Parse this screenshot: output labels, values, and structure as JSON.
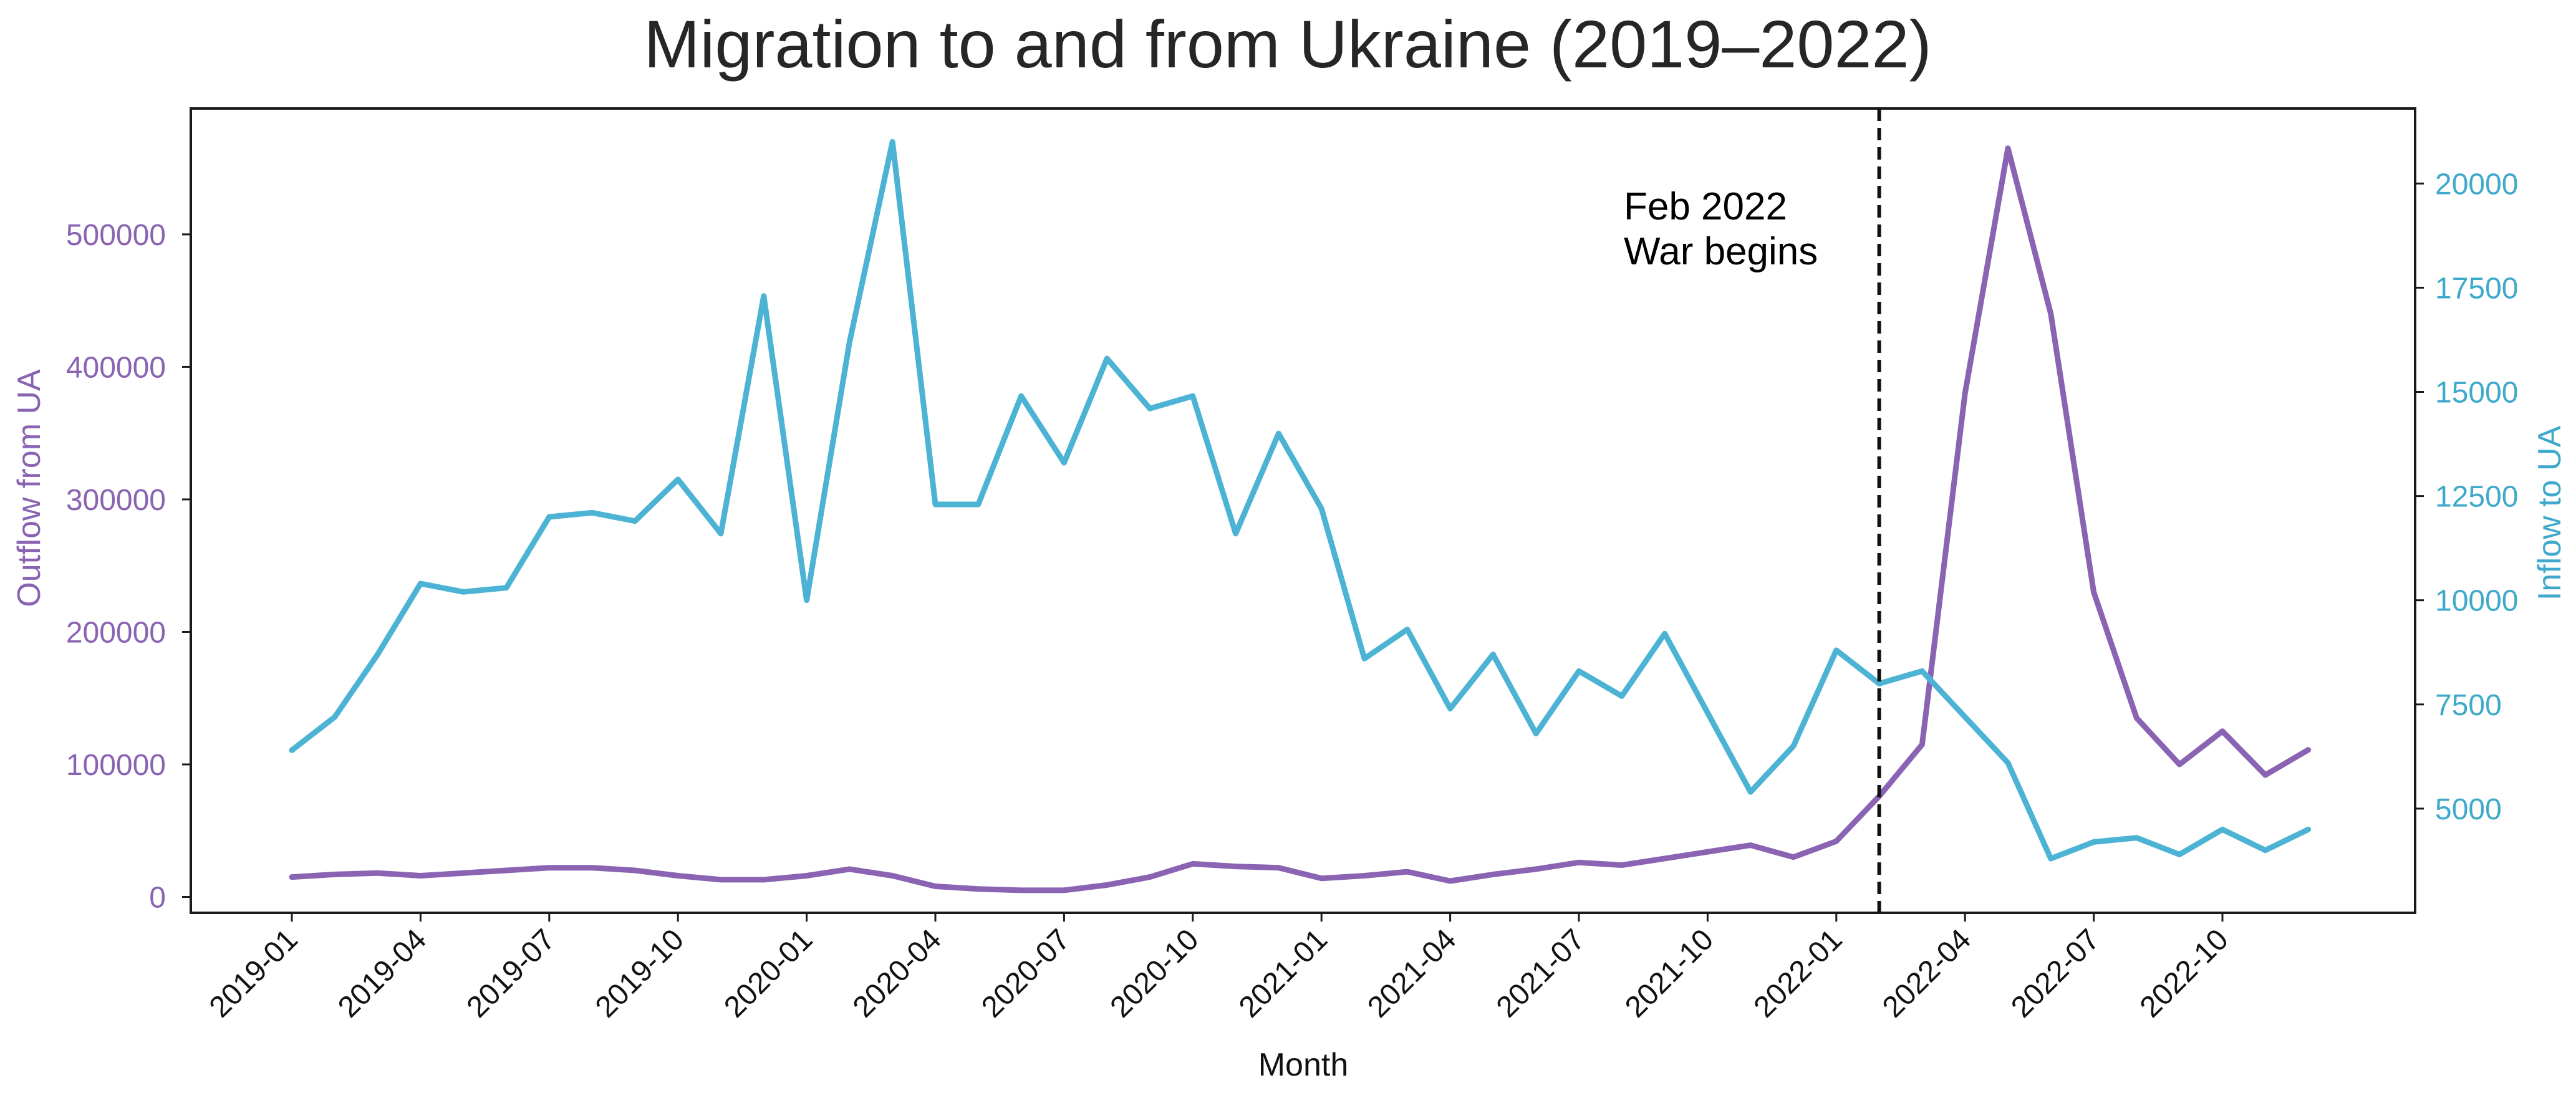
{
  "chart_data": {
    "type": "line",
    "title": "Migration to and from Ukraine (2019–2022)",
    "xlabel": "Month",
    "ylabel_left": "Outflow from UA",
    "ylabel_right": "Inflow to UA",
    "x": [
      "2019-01",
      "2019-02",
      "2019-03",
      "2019-04",
      "2019-05",
      "2019-06",
      "2019-07",
      "2019-08",
      "2019-09",
      "2019-10",
      "2019-11",
      "2019-12",
      "2020-01",
      "2020-02",
      "2020-03",
      "2020-04",
      "2020-05",
      "2020-06",
      "2020-07",
      "2020-08",
      "2020-09",
      "2020-10",
      "2020-11",
      "2020-12",
      "2021-01",
      "2021-02",
      "2021-03",
      "2021-04",
      "2021-05",
      "2021-06",
      "2021-07",
      "2021-08",
      "2021-09",
      "2021-10",
      "2021-11",
      "2021-12",
      "2022-01",
      "2022-02",
      "2022-03",
      "2022-04",
      "2022-05",
      "2022-06",
      "2022-07",
      "2022-08",
      "2022-09",
      "2022-10",
      "2022-11",
      "2022-12"
    ],
    "x_tick_labels": [
      "2019-01",
      "2019-04",
      "2019-07",
      "2019-10",
      "2020-01",
      "2020-04",
      "2020-07",
      "2020-10",
      "2021-01",
      "2021-04",
      "2021-07",
      "2021-10",
      "2022-01",
      "2022-04",
      "2022-07",
      "2022-10"
    ],
    "ylim_left": [
      -12000,
      595000
    ],
    "yticks_left": [
      0,
      100000,
      200000,
      300000,
      400000,
      500000
    ],
    "ylim_right": [
      2500,
      21800
    ],
    "yticks_right": [
      5000,
      7500,
      10000,
      12500,
      15000,
      17500,
      20000
    ],
    "series": [
      {
        "name": "Outflow from UA",
        "axis": "left",
        "color": "#8a63b3",
        "values": [
          15000,
          17000,
          18000,
          16000,
          18000,
          20000,
          22000,
          22000,
          20000,
          16000,
          13000,
          13000,
          16000,
          21000,
          16000,
          8000,
          6000,
          5000,
          5000,
          9000,
          15000,
          25000,
          23000,
          22000,
          14000,
          16000,
          19000,
          12000,
          17000,
          21000,
          26000,
          24000,
          29000,
          34000,
          39000,
          30000,
          42000,
          76000,
          115000,
          380000,
          565000,
          440000,
          230000,
          135000,
          100000,
          125000,
          92000,
          111000
        ]
      },
      {
        "name": "Inflow to UA",
        "axis": "right",
        "color": "#4cb3d4",
        "values": [
          6400,
          7200,
          8700,
          10400,
          10200,
          10300,
          12000,
          12100,
          11900,
          12900,
          11600,
          17300,
          10000,
          16200,
          21000,
          12300,
          12300,
          14900,
          13300,
          15800,
          14600,
          14900,
          11600,
          14000,
          12200,
          8600,
          9300,
          7400,
          8700,
          6800,
          8300,
          7700,
          9200,
          7300,
          5400,
          6500,
          8800,
          8000,
          8300,
          7200,
          6100,
          3800,
          4200,
          4300,
          3900,
          4500,
          4000,
          4500
        ]
      }
    ],
    "annotation": {
      "at": "2022-02",
      "lines": [
        "Feb 2022",
        "War begins"
      ]
    },
    "grid": false,
    "legend": "none"
  }
}
